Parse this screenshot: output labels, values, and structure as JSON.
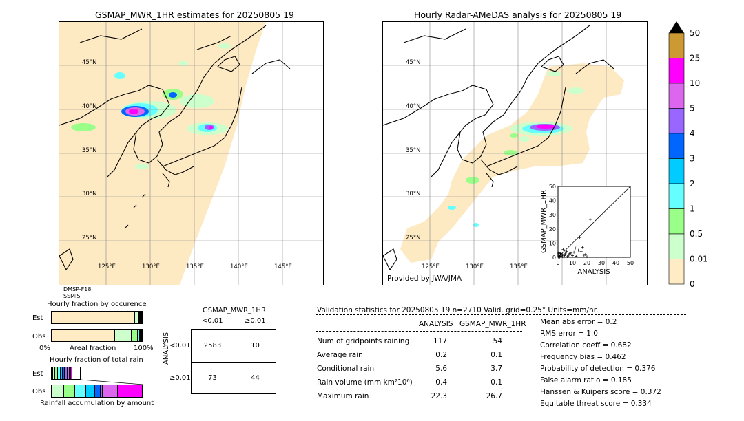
{
  "left_map": {
    "title": "GSMAP_MWR_1HR estimates for 20250805 19",
    "lat_labels": [
      "45°N",
      "40°N",
      "35°N",
      "30°N",
      "25°N"
    ],
    "lon_labels": [
      "125°E",
      "130°E",
      "135°E",
      "140°E",
      "145°E"
    ],
    "sensor_1": "DMSP-F18",
    "sensor_2": "SSMIS"
  },
  "right_map": {
    "title": "Hourly Radar-AMeDAS analysis for 20250805 19",
    "lat_labels": [
      "45°N",
      "40°N",
      "35°N",
      "30°N",
      "25°N"
    ],
    "lon_labels": [
      "125°E",
      "130°E",
      "135°E"
    ],
    "credit": "Provided by JWA/JMA"
  },
  "colorbar": {
    "labels": [
      "50",
      "25",
      "10",
      "5",
      "4",
      "3",
      "2",
      "1",
      "0.5",
      "0.01",
      "0"
    ],
    "colors": [
      "#cc9933",
      "#ff00ff",
      "#dd66ee",
      "#9966ff",
      "#0066ff",
      "#00ccff",
      "#66ffff",
      "#99ff88",
      "#ccffcc",
      "#ffebc4"
    ]
  },
  "scatter": {
    "xlabel": "ANALYSIS",
    "ylabel": "GSMAP_MWR_1HR",
    "ticks": [
      "0",
      "10",
      "20",
      "30",
      "40",
      "50"
    ]
  },
  "occurrence": {
    "title": "Hourly fraction by occurence",
    "row_est": "Est",
    "row_obs": "Obs",
    "axis_left": "0%",
    "axis_mid": "Areal fraction",
    "axis_right": "100%"
  },
  "total_rain": {
    "title": "Hourly fraction of total rain",
    "row_est": "Est",
    "row_obs": "Obs",
    "footer": "Rainfall accumulation by amount"
  },
  "contingency": {
    "title": "GSMAP_MWR_1HR",
    "col_1": "<0.01",
    "col_2": "≥0.01",
    "side_label": "ANALYSIS",
    "row_1": "<0.01",
    "row_2": "≥0.01",
    "cells": [
      "2583",
      "10",
      "73",
      "44"
    ]
  },
  "validation": {
    "header": "Validation statistics for 20250805 19  n=2710 Valid. grid=0.25° Units=mm/hr.",
    "col_analysis": "ANALYSIS",
    "col_gsmap": "GSMAP_MWR_1HR",
    "rows": [
      {
        "label": "Num of gridpoints raining",
        "analysis": "117",
        "gsmap": "54"
      },
      {
        "label": "Average rain",
        "analysis": "0.2",
        "gsmap": "0.1"
      },
      {
        "label": "Conditional rain",
        "analysis": "5.6",
        "gsmap": "3.7"
      },
      {
        "label": "Rain volume (mm km²10⁶)",
        "analysis": "0.4",
        "gsmap": "0.1"
      },
      {
        "label": "Maximum rain",
        "analysis": "22.3",
        "gsmap": "26.7"
      }
    ],
    "scores": [
      "Mean abs error =    0.2",
      "RMS error =    1.0",
      "Correlation coeff =  0.682",
      "Frequency bias =  0.462",
      "Probability of detection =  0.376",
      "False alarm ratio =  0.185",
      "Hanssen & Kuipers score =  0.372",
      "Equitable threat score =  0.334"
    ]
  },
  "chart_data": {
    "type": "scatter",
    "title": "",
    "xlabel": "ANALYSIS",
    "ylabel": "GSMAP_MWR_1HR",
    "xlim": [
      0,
      50
    ],
    "ylim": [
      0,
      50
    ],
    "points": [
      [
        22.3,
        26.7
      ],
      [
        15.0,
        14.0
      ],
      [
        13.0,
        8.0
      ],
      [
        12.0,
        6.5
      ],
      [
        14.0,
        5.0
      ],
      [
        17.0,
        7.0
      ],
      [
        16.0,
        4.0
      ],
      [
        11.0,
        3.5
      ],
      [
        9.0,
        3.0
      ],
      [
        8.0,
        2.5
      ],
      [
        7.5,
        1.5
      ],
      [
        6.0,
        4.0
      ],
      [
        5.0,
        2.5
      ],
      [
        4.5,
        1.2
      ],
      [
        3.5,
        5.5
      ],
      [
        3.0,
        2.0
      ],
      [
        2.5,
        1.0
      ],
      [
        2.0,
        0.5
      ],
      [
        1.5,
        1.8
      ],
      [
        1.0,
        0.8
      ],
      [
        0.8,
        0.3
      ],
      [
        0.5,
        1.0
      ],
      [
        0.3,
        0.2
      ],
      [
        1.2,
        0.1
      ],
      [
        2.2,
        0.2
      ],
      [
        3.2,
        0.4
      ],
      [
        4.2,
        0.2
      ],
      [
        6.5,
        0.5
      ],
      [
        10.0,
        1.2
      ],
      [
        12.5,
        0.8
      ],
      [
        18.0,
        1.5
      ],
      [
        0.2,
        2.5
      ],
      [
        0.6,
        3.2
      ],
      [
        1.8,
        2.8
      ],
      [
        20.0,
        0.4
      ],
      [
        19.0,
        2.0
      ]
    ],
    "occurrence_est_fractions": [
      0.93,
      0.04,
      0.01,
      0.005,
      0.005,
      0.005,
      0.005
    ],
    "occurrence_obs_fractions": [
      0.7,
      0.18,
      0.07,
      0.02,
      0.01,
      0.01,
      0.01
    ],
    "occurrence_colors": [
      "#ffebc4",
      "#ccffcc",
      "#99ff88",
      "#66ffff",
      "#00ccff",
      "#0066ff",
      "#9966ff"
    ],
    "total_rain_est_fractions": [
      0.05,
      0.08,
      0.1,
      0.08,
      0.07,
      0.08,
      0.1,
      0.08,
      0.05,
      0.04
    ],
    "total_rain_obs_fractions": [
      0.0,
      0.14,
      0.12,
      0.12,
      0.1,
      0.06,
      0.02,
      0.17,
      0.0,
      0.27
    ],
    "total_rain_colors": [
      "#ffebc4",
      "#ccffcc",
      "#99ff88",
      "#66ffff",
      "#00ccff",
      "#0066ff",
      "#9966ff",
      "#dd66ee",
      "#cc9933",
      "#ff00ff"
    ]
  }
}
